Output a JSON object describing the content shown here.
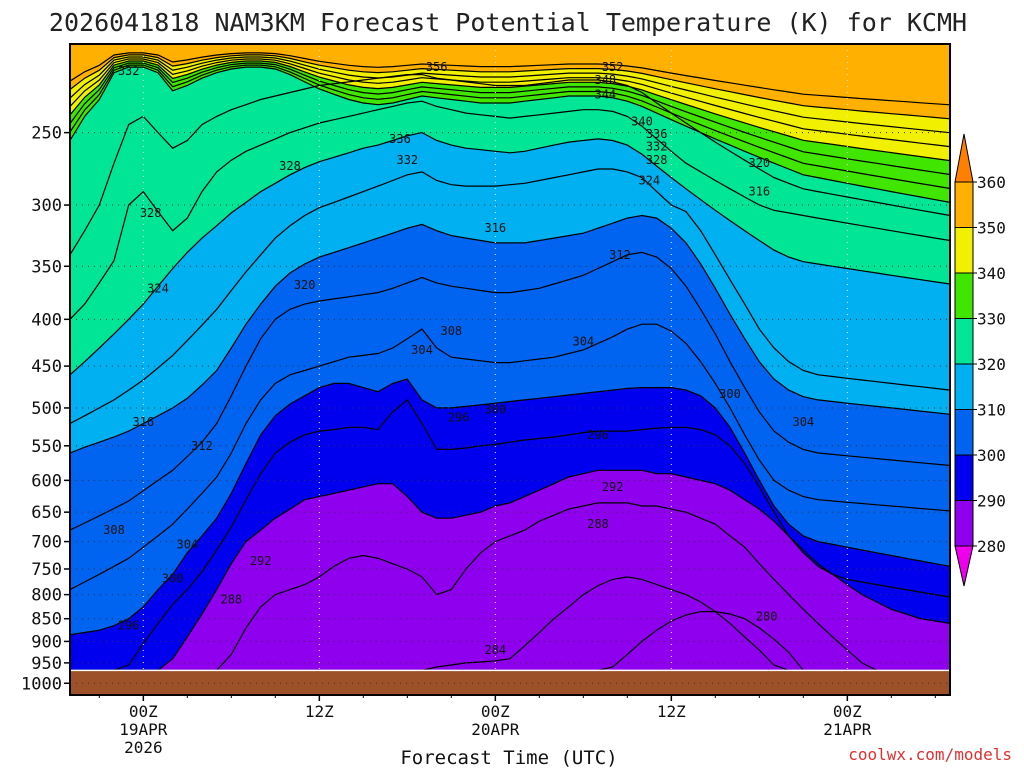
{
  "chart_data": {
    "type": "heatmap",
    "title": "2026041818 NAM3KM Forecast Potential Temperature (K) for KCMH",
    "xlabel": "Forecast Time (UTC)",
    "credit": "coolwx.com/models",
    "x_range_hours": [
      -5,
      55
    ],
    "x_ticks": [
      {
        "hour": 0,
        "lines": [
          "00Z",
          "19APR",
          "2026"
        ]
      },
      {
        "hour": 12,
        "lines": [
          "12Z"
        ]
      },
      {
        "hour": 24,
        "lines": [
          "00Z",
          "20APR"
        ]
      },
      {
        "hour": 36,
        "lines": [
          "12Z"
        ]
      },
      {
        "hour": 48,
        "lines": [
          "00Z",
          "21APR"
        ]
      }
    ],
    "y_scale": "log",
    "y_range_hPa": [
      1030,
      200
    ],
    "y_ticks": [
      250,
      300,
      350,
      400,
      450,
      500,
      550,
      600,
      650,
      700,
      750,
      800,
      850,
      900,
      950,
      1000
    ],
    "grid": true,
    "ground_level_hPa": 968,
    "colorbar": {
      "ticks": [
        280,
        290,
        300,
        310,
        320,
        330,
        340,
        350,
        360
      ],
      "bands": [
        {
          "from": 270,
          "to": 280,
          "color": "#ee00ee"
        },
        {
          "from": 280,
          "to": 290,
          "color": "#8f00ef"
        },
        {
          "from": 290,
          "to": 300,
          "color": "#0000ee"
        },
        {
          "from": 300,
          "to": 310,
          "color": "#0064f0"
        },
        {
          "from": 310,
          "to": 320,
          "color": "#00b0f0"
        },
        {
          "from": 320,
          "to": 330,
          "color": "#00e696"
        },
        {
          "from": 330,
          "to": 340,
          "color": "#40e600"
        },
        {
          "from": 340,
          "to": 350,
          "color": "#f0f000"
        },
        {
          "from": 350,
          "to": 360,
          "color": "#ffb000"
        },
        {
          "from": 360,
          "to": 370,
          "color": "#ff8000"
        }
      ]
    },
    "isentropes": [
      {
        "theta": 280,
        "p": [
          968,
          968,
          968,
          968,
          968,
          968,
          968,
          968,
          968,
          968,
          968,
          968,
          968,
          968,
          968,
          968,
          968,
          968,
          968,
          968,
          968,
          968,
          968,
          968,
          968,
          968,
          968,
          968,
          968,
          968,
          968,
          968,
          968,
          968,
          968,
          968,
          968,
          960,
          930,
          900,
          875,
          855,
          842,
          835,
          835,
          840,
          850,
          870,
          895,
          925,
          968,
          968,
          968,
          968,
          968,
          968,
          968,
          968,
          968,
          968,
          968
        ]
      },
      {
        "theta": 284,
        "p": [
          968,
          968,
          968,
          968,
          968,
          968,
          968,
          968,
          968,
          968,
          968,
          968,
          968,
          968,
          968,
          968,
          968,
          968,
          968,
          968,
          968,
          968,
          968,
          968,
          968,
          960,
          955,
          950,
          948,
          945,
          940,
          910,
          880,
          850,
          825,
          800,
          782,
          770,
          765,
          770,
          780,
          790,
          800,
          815,
          835,
          860,
          890,
          920,
          955,
          968,
          968,
          968,
          968,
          968,
          968,
          968,
          968,
          968,
          968,
          968,
          968
        ]
      },
      {
        "theta": 288,
        "p": [
          968,
          968,
          968,
          968,
          968,
          968,
          968,
          968,
          968,
          968,
          968,
          930,
          870,
          825,
          800,
          790,
          780,
          765,
          745,
          730,
          725,
          730,
          740,
          750,
          765,
          800,
          790,
          750,
          720,
          700,
          690,
          680,
          665,
          655,
          645,
          640,
          635,
          635,
          635,
          640,
          640,
          645,
          650,
          660,
          670,
          690,
          710,
          740,
          770,
          800,
          830,
          860,
          890,
          920,
          950,
          968,
          968,
          968,
          968,
          968,
          968
        ]
      },
      {
        "theta": 292,
        "p": [
          968,
          968,
          968,
          968,
          968,
          968,
          968,
          940,
          890,
          840,
          790,
          740,
          700,
          680,
          660,
          645,
          630,
          625,
          620,
          615,
          610,
          605,
          605,
          625,
          650,
          660,
          660,
          655,
          650,
          640,
          635,
          625,
          615,
          605,
          595,
          590,
          585,
          585,
          585,
          585,
          590,
          590,
          595,
          600,
          605,
          615,
          630,
          645,
          665,
          690,
          715,
          740,
          760,
          780,
          800,
          815,
          830,
          840,
          850,
          855,
          860
        ]
      },
      {
        "theta": 296,
        "p": [
          968,
          968,
          968,
          968,
          955,
          905,
          860,
          820,
          790,
          755,
          715,
          675,
          630,
          590,
          560,
          545,
          535,
          530,
          528,
          525,
          525,
          528,
          505,
          490,
          520,
          555,
          555,
          553,
          550,
          548,
          545,
          542,
          540,
          538,
          535,
          532,
          530,
          530,
          530,
          528,
          526,
          525,
          525,
          528,
          535,
          550,
          575,
          610,
          650,
          690,
          720,
          745,
          760,
          770,
          775,
          780,
          785,
          790,
          795,
          800,
          805
        ]
      },
      {
        "theta": 300,
        "p": [
          885,
          880,
          875,
          865,
          850,
          825,
          790,
          760,
          720,
          690,
          660,
          620,
          575,
          535,
          510,
          495,
          485,
          475,
          470,
          470,
          475,
          480,
          470,
          465,
          490,
          500,
          500,
          498,
          496,
          494,
          492,
          490,
          488,
          486,
          484,
          482,
          480,
          478,
          476,
          475,
          475,
          475,
          478,
          485,
          500,
          525,
          560,
          600,
          640,
          670,
          690,
          700,
          705,
          710,
          715,
          720,
          725,
          730,
          735,
          740,
          745
        ]
      },
      {
        "theta": 304,
        "p": [
          790,
          775,
          760,
          745,
          730,
          710,
          690,
          670,
          645,
          620,
          595,
          560,
          520,
          490,
          470,
          460,
          455,
          450,
          445,
          440,
          438,
          436,
          430,
          420,
          410,
          430,
          440,
          442,
          444,
          446,
          446,
          444,
          442,
          440,
          436,
          432,
          425,
          418,
          410,
          405,
          405,
          412,
          425,
          445,
          470,
          500,
          535,
          570,
          600,
          615,
          625,
          630,
          632,
          634,
          636,
          638,
          640,
          642,
          644,
          646,
          648
        ]
      },
      {
        "theta": 308,
        "p": [
          680,
          668,
          656,
          644,
          632,
          616,
          600,
          585,
          565,
          545,
          520,
          485,
          450,
          420,
          400,
          390,
          385,
          382,
          380,
          378,
          376,
          374,
          370,
          365,
          360,
          365,
          368,
          370,
          372,
          374,
          374,
          372,
          370,
          366,
          362,
          358,
          352,
          346,
          340,
          338,
          342,
          352,
          368,
          390,
          415,
          445,
          475,
          505,
          530,
          545,
          555,
          560,
          562,
          564,
          566,
          568,
          570,
          572,
          574,
          576,
          578
        ]
      },
      {
        "theta": 312,
        "p": [
          560,
          552,
          545,
          538,
          530,
          520,
          510,
          500,
          488,
          472,
          455,
          430,
          405,
          385,
          368,
          356,
          348,
          342,
          338,
          334,
          330,
          326,
          322,
          318,
          315,
          320,
          324,
          326,
          328,
          330,
          330,
          330,
          328,
          326,
          324,
          322,
          318,
          314,
          310,
          308,
          310,
          318,
          330,
          348,
          370,
          395,
          420,
          445,
          465,
          478,
          486,
          490,
          492,
          494,
          496,
          498,
          500,
          502,
          504,
          506,
          508
        ]
      },
      {
        "theta": 316,
        "p": [
          520,
          510,
          500,
          490,
          478,
          466,
          452,
          438,
          422,
          406,
          390,
          372,
          355,
          340,
          326,
          316,
          308,
          302,
          298,
          294,
          290,
          286,
          282,
          278,
          276,
          282,
          285,
          286,
          286,
          286,
          285,
          284,
          282,
          280,
          278,
          276,
          274,
          274,
          276,
          280,
          290,
          300,
          305,
          320,
          340,
          362,
          385,
          410,
          430,
          445,
          455,
          460,
          462,
          464,
          466,
          468,
          470,
          472,
          474,
          476,
          478
        ]
      },
      {
        "theta": 320,
        "p": [
          460,
          445,
          430,
          415,
          400,
          385,
          368,
          352,
          338,
          326,
          316,
          306,
          298,
          290,
          284,
          278,
          273,
          269,
          266,
          263,
          260,
          258,
          255,
          252,
          250,
          255,
          258,
          260,
          261,
          262,
          263,
          262,
          260,
          258,
          256,
          255,
          254,
          255,
          258,
          264,
          272,
          280,
          288,
          296,
          304,
          312,
          320,
          328,
          336,
          342,
          346,
          348,
          350,
          352,
          354,
          356,
          358,
          360,
          362,
          364,
          366
        ]
      },
      {
        "theta": 324,
        "p": [
          400,
          385,
          365,
          345,
          300,
          290,
          305,
          320,
          310,
          290,
          276,
          268,
          262,
          258,
          254,
          250,
          247,
          244,
          242,
          240,
          238,
          236,
          234,
          232,
          231,
          234,
          236,
          238,
          239,
          240,
          241,
          240,
          239,
          238,
          237,
          236,
          236,
          237,
          240,
          246,
          254,
          262,
          270,
          276,
          282,
          288,
          294,
          300,
          304,
          306,
          308,
          310,
          312,
          314,
          316,
          318,
          320,
          322,
          324,
          326,
          328
        ]
      },
      {
        "theta": 328,
        "p": [
          340,
          320,
          300,
          270,
          245,
          240,
          250,
          260,
          255,
          245,
          240,
          236,
          233,
          230,
          228,
          226,
          224,
          222,
          221,
          220,
          219,
          218,
          217,
          216,
          216,
          218,
          219,
          220,
          221,
          222,
          222,
          222,
          221,
          220,
          219,
          219,
          219,
          220,
          222,
          226,
          232,
          238,
          244,
          250,
          256,
          262,
          268,
          274,
          280,
          284,
          288,
          290,
          292,
          294,
          296,
          298,
          300,
          302,
          304,
          306,
          308
        ]
      },
      {
        "theta": 332,
        "p": [
          255,
          240,
          230,
          215,
          212,
          212,
          215,
          225,
          222,
          218,
          215,
          213,
          212,
          212,
          213,
          216,
          220,
          224,
          227,
          230,
          232,
          233,
          232,
          230,
          228,
          229,
          230,
          231,
          232,
          232,
          232,
          231,
          230,
          229,
          228,
          228,
          228,
          229,
          231,
          234,
          238,
          242,
          246,
          250,
          254,
          258,
          262,
          266,
          270,
          274,
          278,
          280,
          282,
          284,
          286,
          288,
          290,
          292,
          294,
          296,
          298
        ]
      }
    ],
    "contour_labels": [
      {
        "text": "332",
        "hour": -1.0,
        "p": 214
      },
      {
        "text": "356",
        "hour": 20.0,
        "p": 212
      },
      {
        "text": "352",
        "hour": 32.0,
        "p": 212
      },
      {
        "text": "348",
        "hour": 31.5,
        "p": 219
      },
      {
        "text": "344",
        "hour": 31.5,
        "p": 227
      },
      {
        "text": "340",
        "hour": 34.0,
        "p": 243
      },
      {
        "text": "336",
        "hour": 35.0,
        "p": 251
      },
      {
        "text": "332",
        "hour": 35.0,
        "p": 259
      },
      {
        "text": "328",
        "hour": 35.0,
        "p": 268
      },
      {
        "text": "324",
        "hour": 34.5,
        "p": 282
      },
      {
        "text": "320",
        "hour": 42.0,
        "p": 270
      },
      {
        "text": "316",
        "hour": 42.0,
        "p": 290
      },
      {
        "text": "336",
        "hour": 17.5,
        "p": 254
      },
      {
        "text": "332",
        "hour": 18.0,
        "p": 268
      },
      {
        "text": "328",
        "hour": 10.0,
        "p": 272
      },
      {
        "text": "328",
        "hour": 0.5,
        "p": 306
      },
      {
        "text": "316",
        "hour": 24.0,
        "p": 318
      },
      {
        "text": "312",
        "hour": 32.5,
        "p": 340
      },
      {
        "text": "324",
        "hour": 1.0,
        "p": 370
      },
      {
        "text": "320",
        "hour": 11.0,
        "p": 367
      },
      {
        "text": "308",
        "hour": 21.0,
        "p": 412
      },
      {
        "text": "304",
        "hour": 19.0,
        "p": 432
      },
      {
        "text": "304",
        "hour": 30.0,
        "p": 423
      },
      {
        "text": "300",
        "hour": 40.0,
        "p": 483
      },
      {
        "text": "304",
        "hour": 45.0,
        "p": 518
      },
      {
        "text": "296",
        "hour": 21.5,
        "p": 512
      },
      {
        "text": "300",
        "hour": 24.0,
        "p": 502
      },
      {
        "text": "316",
        "hour": 0.0,
        "p": 518
      },
      {
        "text": "312",
        "hour": 4.0,
        "p": 550
      },
      {
        "text": "296",
        "hour": 31.0,
        "p": 535
      },
      {
        "text": "292",
        "hour": 32.0,
        "p": 610
      },
      {
        "text": "288",
        "hour": 31.0,
        "p": 670
      },
      {
        "text": "308",
        "hour": -2.0,
        "p": 680
      },
      {
        "text": "304",
        "hour": 3.0,
        "p": 705
      },
      {
        "text": "292",
        "hour": 8.0,
        "p": 735
      },
      {
        "text": "300",
        "hour": 2.0,
        "p": 768
      },
      {
        "text": "288",
        "hour": 6.0,
        "p": 810
      },
      {
        "text": "296",
        "hour": -1.0,
        "p": 865
      },
      {
        "text": "284",
        "hour": 24.0,
        "p": 920
      },
      {
        "text": "280",
        "hour": 42.5,
        "p": 845
      }
    ]
  }
}
